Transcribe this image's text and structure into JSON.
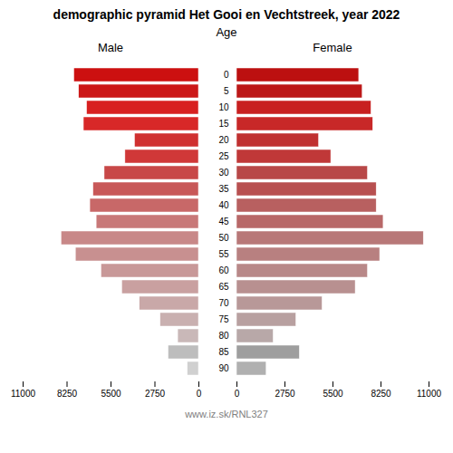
{
  "chart_data": {
    "type": "bar",
    "orientation": "horizontal",
    "title": "demographic pyramid Het Gooi en Vechtstreek, year 2022",
    "ylabel": "Age",
    "footer": "www.iz.sk/RNL327",
    "categories": [
      "90",
      "85",
      "80",
      "75",
      "70",
      "65",
      "60",
      "55",
      "50",
      "45",
      "40",
      "35",
      "30",
      "25",
      "20",
      "15",
      "10",
      "5",
      "0"
    ],
    "series": [
      {
        "name": "Male",
        "values": [
          700,
          1900,
          1300,
          2400,
          3700,
          4800,
          6100,
          7700,
          8600,
          6400,
          6800,
          6600,
          5900,
          4600,
          4000,
          7200,
          7000,
          7500,
          7800
        ],
        "colors": [
          "#d0d0d0",
          "#bdbdbd",
          "#c9b8b8",
          "#c9b0b0",
          "#c9a8a8",
          "#c9a0a0",
          "#c89898",
          "#c89090",
          "#c88888",
          "#c87878",
          "#c86868",
          "#c85858",
          "#c84848",
          "#d03838",
          "#d03030",
          "#d82828",
          "#d82020",
          "#cc1818",
          "#cc1010"
        ]
      },
      {
        "name": "Female",
        "values": [
          1700,
          3600,
          2100,
          3400,
          4900,
          6800,
          7500,
          8200,
          10700,
          8400,
          8000,
          8000,
          7500,
          5400,
          4700,
          7800,
          7700,
          7200,
          7000
        ],
        "colors": [
          "#b0b0b0",
          "#9e9e9e",
          "#b8a8a8",
          "#b8a0a0",
          "#b89898",
          "#b89090",
          "#b88888",
          "#b88080",
          "#b87878",
          "#b86868",
          "#b86060",
          "#b85050",
          "#b84848",
          "#c03838",
          "#c03030",
          "#c82828",
          "#c82020",
          "#bc1818",
          "#bc1010"
        ]
      }
    ],
    "xlim": [
      0,
      11000
    ],
    "xticks": [
      0,
      2750,
      5500,
      8250,
      11000
    ]
  }
}
